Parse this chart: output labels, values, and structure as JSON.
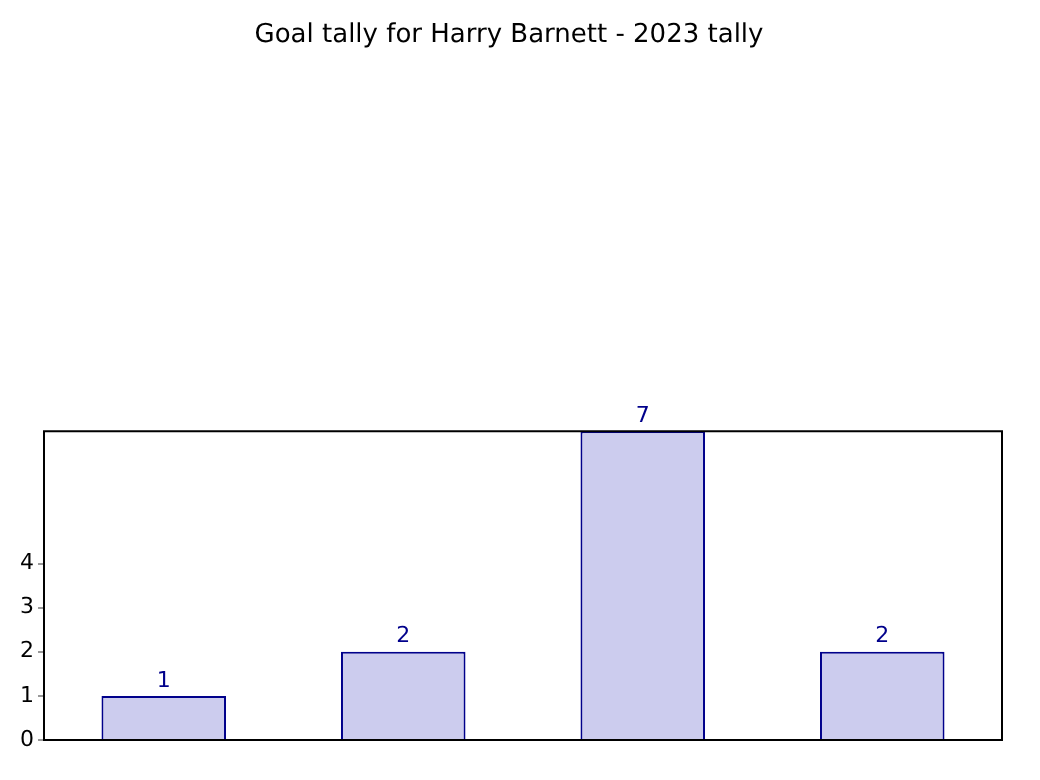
{
  "chart_data": {
    "type": "bar",
    "title": "Goal tally for Harry Barnett - 2023 tally",
    "categories": [
      null,
      null,
      null,
      null
    ],
    "values": [
      1,
      2,
      7,
      2
    ],
    "color": "#ccccee",
    "ylim": [
      0,
      7
    ],
    "yticks": [
      0,
      1,
      2,
      3,
      4
    ],
    "data_labels": true
  }
}
